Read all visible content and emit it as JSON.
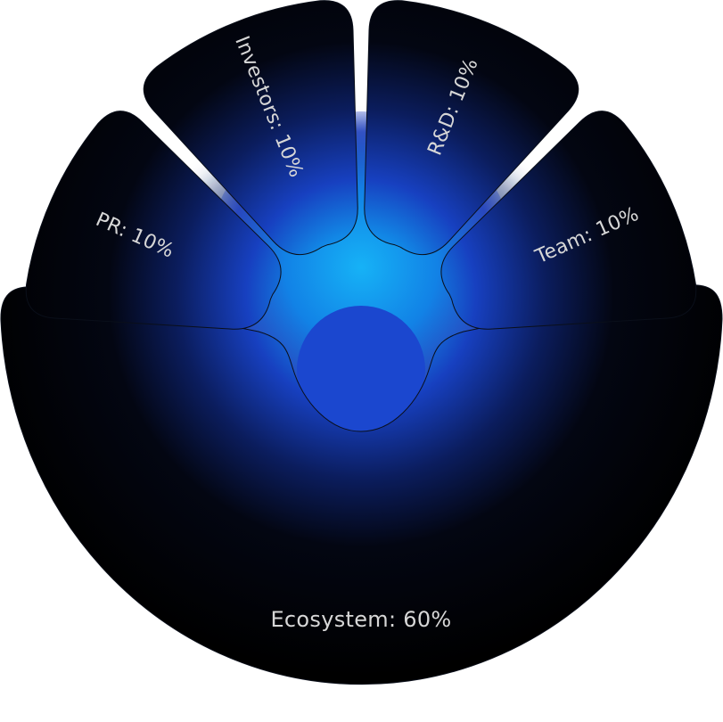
{
  "colors": {
    "segment_fill": "#020305",
    "glow_core": "#14b0f5",
    "glow_mid": "#1663d8",
    "glow_deep": "#1930a8",
    "label": "#d7d7d7",
    "background": "#ffffff"
  },
  "chart_data": {
    "type": "pie",
    "title": "",
    "slices": [
      {
        "name": "Ecosystem",
        "value": 60,
        "label": "Ecosystem: 60%"
      },
      {
        "name": "PR",
        "value": 10,
        "label": "PR: 10%"
      },
      {
        "name": "Investors",
        "value": 10,
        "label": "Investors: 10%"
      },
      {
        "name": "R&D",
        "value": 10,
        "label": "R&D: 10%"
      },
      {
        "name": "Team",
        "value": 10,
        "label": "Team: 10%"
      }
    ],
    "legend": "none"
  }
}
